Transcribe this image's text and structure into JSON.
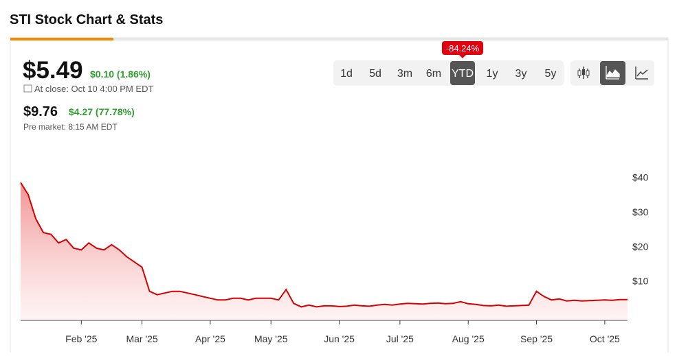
{
  "header": {
    "title": "STI Stock Chart & Stats",
    "price": "$5.49",
    "change": "$0.10 (1.86%)",
    "close_note": "At close: Oct 10 4:00 PM EDT",
    "pre_price": "$9.76",
    "pre_change": "$4.27 (77.78%)",
    "pre_note": "Pre market: 8:15 AM EDT"
  },
  "toolbar": {
    "badge": "-84.24%",
    "ranges": [
      "1d",
      "5d",
      "3m",
      "6m",
      "YTD",
      "1y",
      "3y",
      "5y"
    ],
    "selected": "YTD"
  },
  "chart_data": {
    "type": "area",
    "color": "#d40000",
    "categories": [
      null,
      null,
      null,
      null,
      null,
      null,
      null,
      null,
      "Feb '25",
      null,
      null,
      null,
      null,
      null,
      null,
      null,
      "Mar '25",
      null,
      null,
      null,
      null,
      null,
      null,
      null,
      null,
      "Apr '25",
      null,
      null,
      null,
      null,
      null,
      null,
      null,
      "May '25",
      null,
      null,
      null,
      null,
      null,
      null,
      null,
      null,
      "Jun '25",
      null,
      null,
      null,
      null,
      null,
      null,
      null,
      "Jul '25",
      null,
      null,
      null,
      null,
      null,
      null,
      null,
      null,
      "Aug '25",
      null,
      null,
      null,
      null,
      null,
      null,
      null,
      null,
      "Sep '25",
      null,
      null,
      null,
      null,
      null,
      null,
      null,
      null,
      "Oct '25",
      null,
      null,
      null
    ],
    "values": [
      38.5,
      35,
      28,
      24,
      23.5,
      21,
      22,
      19.5,
      19,
      21,
      19.5,
      19,
      20.5,
      19,
      17,
      15.5,
      14,
      7,
      6,
      6.5,
      7,
      7,
      6.5,
      6,
      5.5,
      5,
      4.5,
      4.5,
      5,
      5,
      4.5,
      5,
      5,
      5,
      4.5,
      7.5,
      3.5,
      2.5,
      3,
      2.5,
      2.8,
      2.8,
      2.6,
      2.7,
      3,
      2.8,
      2.7,
      3,
      3.2,
      3,
      3.3,
      3.5,
      3.4,
      3.3,
      3.5,
      3.6,
      3.4,
      3.5,
      4,
      3.4,
      3.2,
      2.9,
      2.8,
      3,
      2.7,
      2.8,
      2.9,
      3,
      7,
      5.5,
      4.5,
      4.8,
      4.2,
      4.4,
      4.2,
      4.3,
      4.4,
      4.5,
      4.4,
      4.6,
      4.6
    ],
    "ylim": [
      -1.4,
      41.7
    ],
    "yticks": [
      {
        "value": 10,
        "label": "$10"
      },
      {
        "value": 20,
        "label": "$20"
      },
      {
        "value": 30,
        "label": "$30"
      },
      {
        "value": 40,
        "label": "$40"
      }
    ]
  }
}
